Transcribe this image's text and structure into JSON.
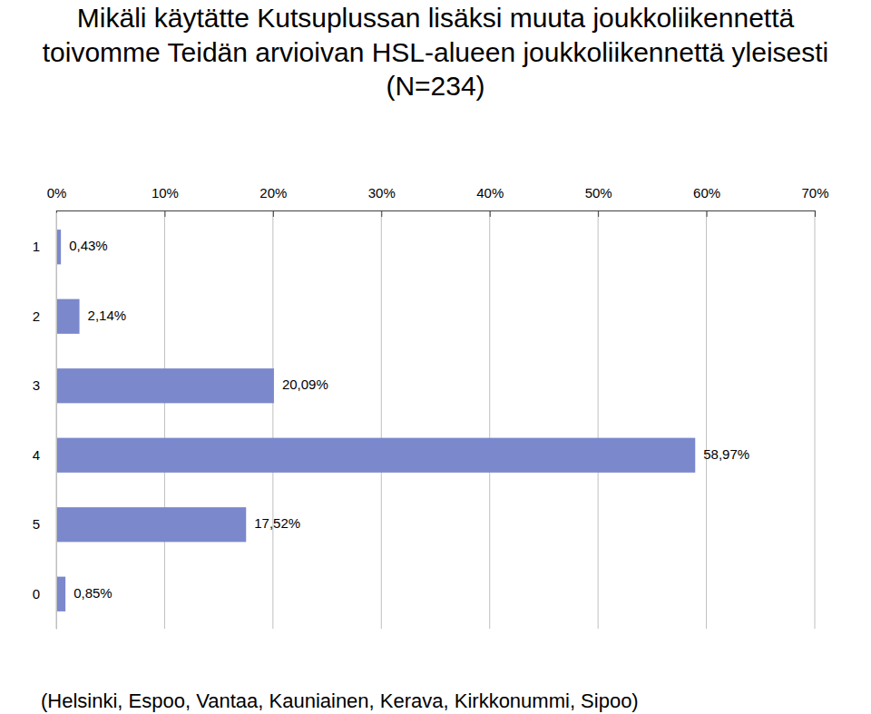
{
  "chart_data": {
    "type": "bar",
    "orientation": "horizontal",
    "title": "Mikäli käytätte Kutsuplussan lisäksi muuta joukkoliikennettä\ntoivomme Teidän arvioivan HSL-alueen joukkoliikennettä yleisesti\n(N=234)",
    "annotations": [
      "(Helsinki, Espoo, Vantaa, Kauniainen, Kerava, Kirkkonummi, Sipoo)"
    ],
    "categories": [
      "1",
      "2",
      "3",
      "4",
      "5",
      "0"
    ],
    "values": [
      0.43,
      2.14,
      20.09,
      58.97,
      17.52,
      0.85
    ],
    "value_labels": [
      "0,43%",
      "2,14%",
      "20,09%",
      "58,97%",
      "17,52%",
      "0,85%"
    ],
    "color": "#7b88cc",
    "xlim": [
      0,
      70
    ],
    "xticks": [
      {
        "value": 0,
        "label": "0%"
      },
      {
        "value": 10,
        "label": "10%"
      },
      {
        "value": 20,
        "label": "20%"
      },
      {
        "value": 30,
        "label": "30%"
      },
      {
        "value": 40,
        "label": "40%"
      },
      {
        "value": 50,
        "label": "50%"
      },
      {
        "value": 60,
        "label": "60%"
      },
      {
        "value": 70,
        "label": "70%"
      }
    ],
    "grid": true,
    "data_labels": true
  }
}
